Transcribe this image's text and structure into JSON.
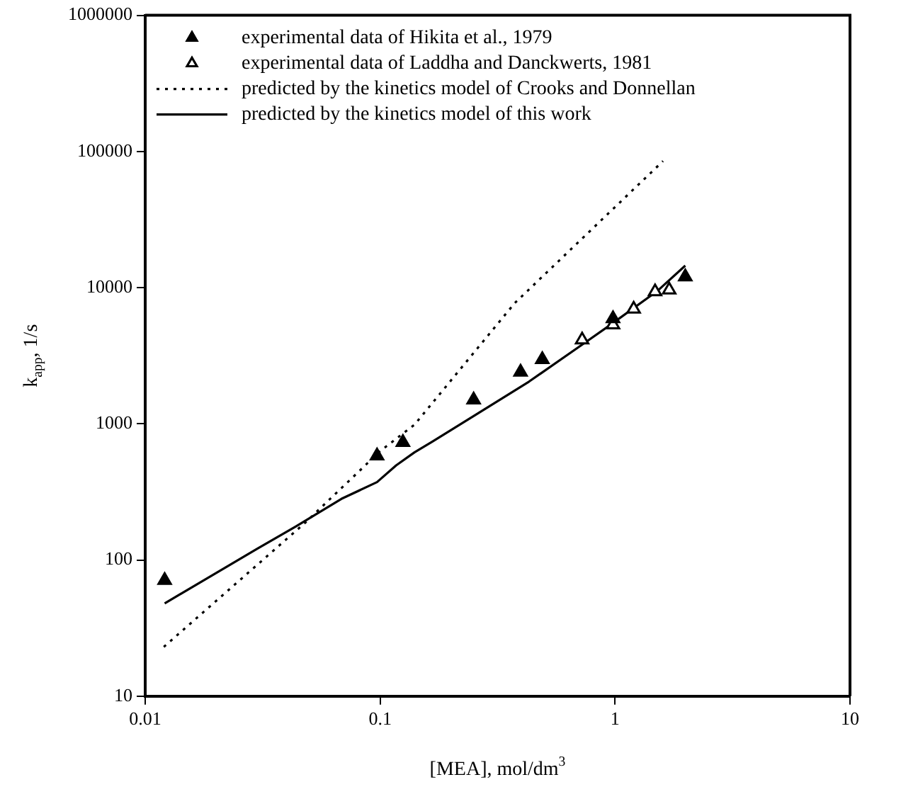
{
  "chart_data": {
    "type": "scatter",
    "xlabel": "[MEA], mol/dm$^{3}$",
    "ylabel": "k$_{app}$, 1/s",
    "log": "xy",
    "grid": false,
    "legend": "top left",
    "xlim": [
      0.01,
      10
    ],
    "xticks": [
      0.01,
      0.1,
      1,
      10
    ],
    "ylim": [
      10,
      1000000
    ],
    "yticks": [
      10,
      100,
      1000,
      10000,
      100000,
      1000000
    ],
    "series": [
      {
        "name": "experimental data of Hikita et al., 1979",
        "type": "scatter",
        "marker": "triangle",
        "color": "#000000",
        "x": [
          0.0121,
          0.097,
          0.125,
          0.25,
          0.396,
          0.49,
          0.98,
          1.99
        ],
        "values": [
          71,
          582,
          730,
          1500,
          2400,
          2970,
          5920,
          12000
        ]
      },
      {
        "name": "experimental data of Laddha and Danckwerts, 1981",
        "type": "scatter",
        "marker": "triangle-open",
        "color": "#000000",
        "x": [
          0.724,
          0.98,
          1.2,
          1.48,
          1.7
        ],
        "values": [
          4140,
          5330,
          6970,
          9330,
          9640
        ]
      },
      {
        "name": "predicted by the kinetics model of Crooks and Donnellan",
        "type": "line",
        "marker": "none",
        "line_style": "dotted",
        "color": "#000000",
        "x": [
          0.012,
          0.048,
          0.1,
          0.14,
          0.374,
          1.6
        ],
        "values": [
          23,
          188,
          630,
          985,
          7700,
          85000
        ]
      },
      {
        "name": "predicted by the kinetics model of this work",
        "type": "line",
        "marker": "none",
        "line_style": "solid",
        "color": "#000000",
        "x": [
          0.0121,
          0.02,
          0.03,
          0.0437,
          0.0684,
          0.097,
          0.117,
          0.14,
          0.167,
          0.25,
          0.43,
          0.73,
          0.955,
          1.51,
          1.99
        ],
        "values": [
          48,
          80,
          121,
          176,
          281,
          373,
          495,
          617,
          741,
          1140,
          2040,
          3850,
          5330,
          9420,
          14500
        ]
      }
    ]
  }
}
